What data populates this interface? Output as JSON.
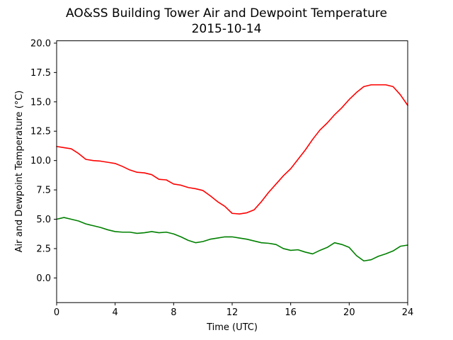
{
  "chart_data": {
    "type": "line",
    "title": "AO&SS Building Tower Air and Dewpoint Temperature",
    "subtitle": "2015-10-14",
    "xlabel": "Time (UTC)",
    "ylabel": "Air and Dewpoint Temperature (°C)",
    "xlim": [
      0,
      24
    ],
    "ylim": [
      -2.1,
      20.2
    ],
    "xticks": [
      0,
      4,
      8,
      12,
      16,
      20,
      24
    ],
    "xtick_labels": [
      "0",
      "4",
      "8",
      "12",
      "16",
      "20",
      "24"
    ],
    "yticks": [
      0.0,
      2.5,
      5.0,
      7.5,
      10.0,
      12.5,
      15.0,
      17.5,
      20.0
    ],
    "ytick_labels": [
      "0.0",
      "2.5",
      "5.0",
      "7.5",
      "10.0",
      "12.5",
      "15.0",
      "17.5",
      "20.0"
    ],
    "grid": false,
    "legend": false,
    "series": [
      {
        "color": "#ff0000",
        "x": [
          0,
          0.5,
          1,
          1.5,
          2,
          2.5,
          3,
          3.5,
          4,
          4.5,
          5,
          5.5,
          6,
          6.5,
          7,
          7.5,
          8,
          8.5,
          9,
          9.5,
          10,
          10.5,
          11,
          11.5,
          12,
          12.5,
          13,
          13.5,
          14,
          14.5,
          15,
          15.5,
          16,
          16.5,
          17,
          17.5,
          18,
          18.5,
          19,
          19.5,
          20,
          20.5,
          21,
          21.5,
          22,
          22.5,
          23,
          23.5,
          24
        ],
        "values": [
          11.2,
          11.1,
          11.0,
          10.6,
          10.1,
          10.0,
          9.95,
          9.85,
          9.75,
          9.5,
          9.2,
          9.0,
          8.95,
          8.8,
          8.4,
          8.35,
          8.0,
          7.9,
          7.7,
          7.6,
          7.45,
          7.0,
          6.5,
          6.1,
          5.5,
          5.45,
          5.55,
          5.8,
          6.5,
          7.3,
          8.0,
          8.7,
          9.3,
          10.1,
          10.9,
          11.8,
          12.6,
          13.2,
          13.9,
          14.5,
          15.2,
          15.8,
          16.3,
          16.45,
          16.45,
          16.45,
          16.3,
          15.6,
          14.7
        ]
      },
      {
        "color": "#008000",
        "x": [
          0,
          0.5,
          1,
          1.5,
          2,
          2.5,
          3,
          3.5,
          4,
          4.5,
          5,
          5.5,
          6,
          6.5,
          7,
          7.5,
          8,
          8.5,
          9,
          9.5,
          10,
          10.5,
          11,
          11.5,
          12,
          12.5,
          13,
          13.5,
          14,
          14.5,
          15,
          15.5,
          16,
          16.5,
          17,
          17.5,
          18,
          18.5,
          19,
          19.5,
          20,
          20.5,
          21,
          21.5,
          22,
          22.5,
          23,
          23.5,
          24
        ],
        "values": [
          5.0,
          5.15,
          5.0,
          4.85,
          4.6,
          4.45,
          4.3,
          4.1,
          3.95,
          3.9,
          3.9,
          3.8,
          3.85,
          3.95,
          3.85,
          3.9,
          3.75,
          3.5,
          3.2,
          3.0,
          3.1,
          3.3,
          3.4,
          3.5,
          3.5,
          3.4,
          3.3,
          3.15,
          3.0,
          2.95,
          2.85,
          2.5,
          2.35,
          2.4,
          2.2,
          2.05,
          2.35,
          2.6,
          3.0,
          2.85,
          2.6,
          1.9,
          1.45,
          1.55,
          1.85,
          2.05,
          2.3,
          2.7,
          2.8
        ]
      }
    ]
  }
}
